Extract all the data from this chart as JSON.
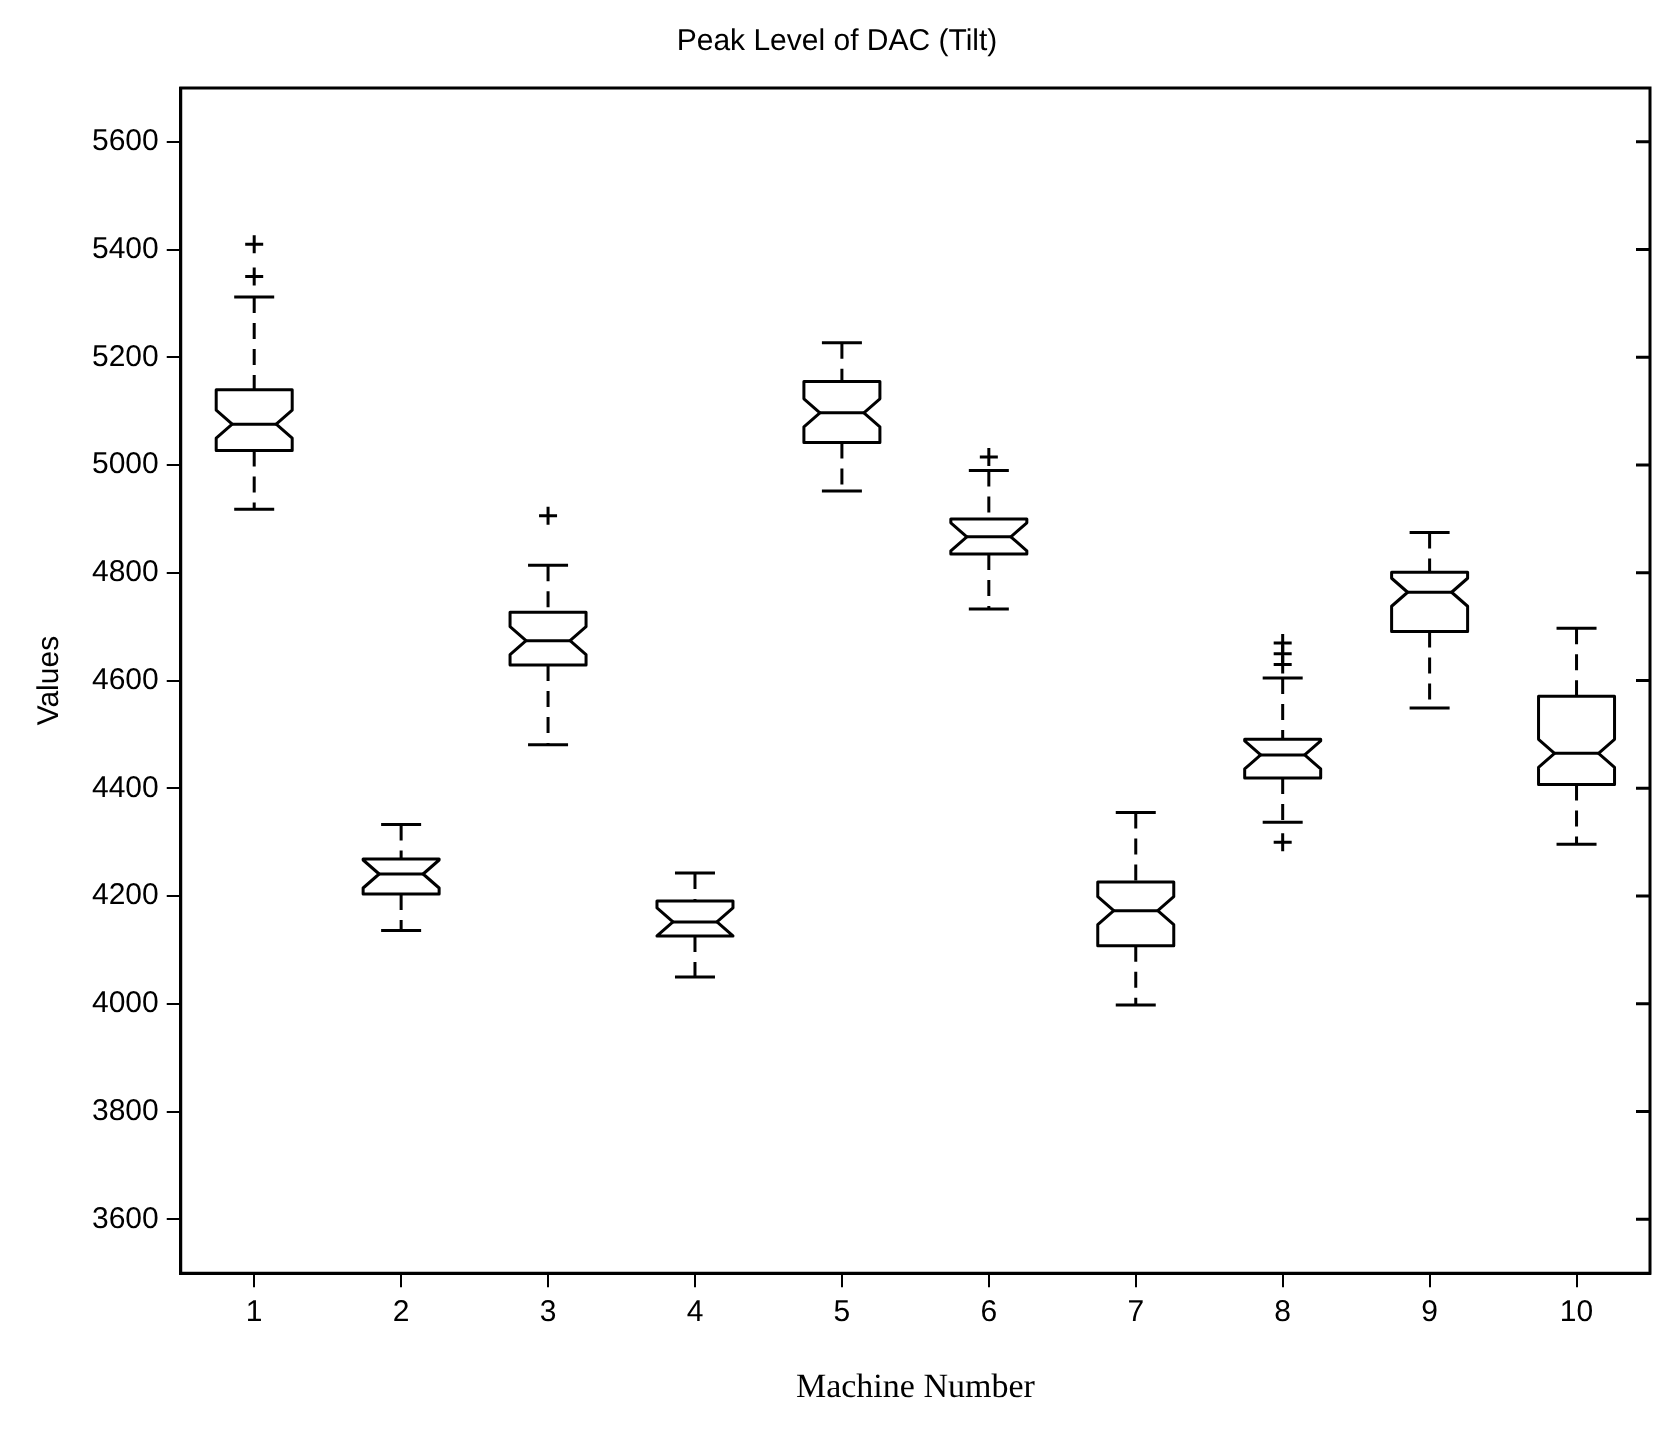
{
  "chart_data": {
    "type": "box",
    "title": "Peak Level of DAC (Tilt)",
    "xlabel": "Machine Number",
    "ylabel": "Values",
    "categories": [
      "1",
      "2",
      "3",
      "4",
      "5",
      "6",
      "7",
      "8",
      "9",
      "10"
    ],
    "boxes": [
      {
        "low": 4918,
        "q1": 5027,
        "median": 5076,
        "q3": 5140,
        "high": 5312,
        "outliers": [
          5350,
          5410
        ]
      },
      {
        "low": 4136,
        "q1": 4204,
        "median": 4241,
        "q3": 4269,
        "high": 4333
      },
      {
        "low": 4481,
        "q1": 4629,
        "median": 4674,
        "q3": 4727,
        "high": 4814,
        "outliers": [
          4906
        ]
      },
      {
        "low": 4050,
        "q1": 4126,
        "median": 4152,
        "q3": 4191,
        "high": 4243
      },
      {
        "low": 4952,
        "q1": 5042,
        "median": 5097,
        "q3": 5155,
        "high": 5227
      },
      {
        "low": 4733,
        "q1": 4835,
        "median": 4867,
        "q3": 4900,
        "high": 4990,
        "outliers": [
          5015
        ]
      },
      {
        "low": 3998,
        "q1": 4108,
        "median": 4173,
        "q3": 4226,
        "high": 4355
      },
      {
        "low": 4337,
        "q1": 4419,
        "median": 4462,
        "q3": 4491,
        "high": 4605,
        "outliers": [
          4630,
          4650,
          4670,
          4300
        ]
      },
      {
        "low": 4549,
        "q1": 4691,
        "median": 4764,
        "q3": 4801,
        "high": 4875
      },
      {
        "low": 4296,
        "q1": 4407,
        "median": 4465,
        "q3": 4571,
        "high": 4697
      }
    ],
    "ylim": [
      3500,
      5700
    ],
    "yticks": [
      3600,
      3800,
      4000,
      4200,
      4400,
      4600,
      4800,
      5000,
      5200,
      5400,
      5600
    ],
    "grid": false
  }
}
